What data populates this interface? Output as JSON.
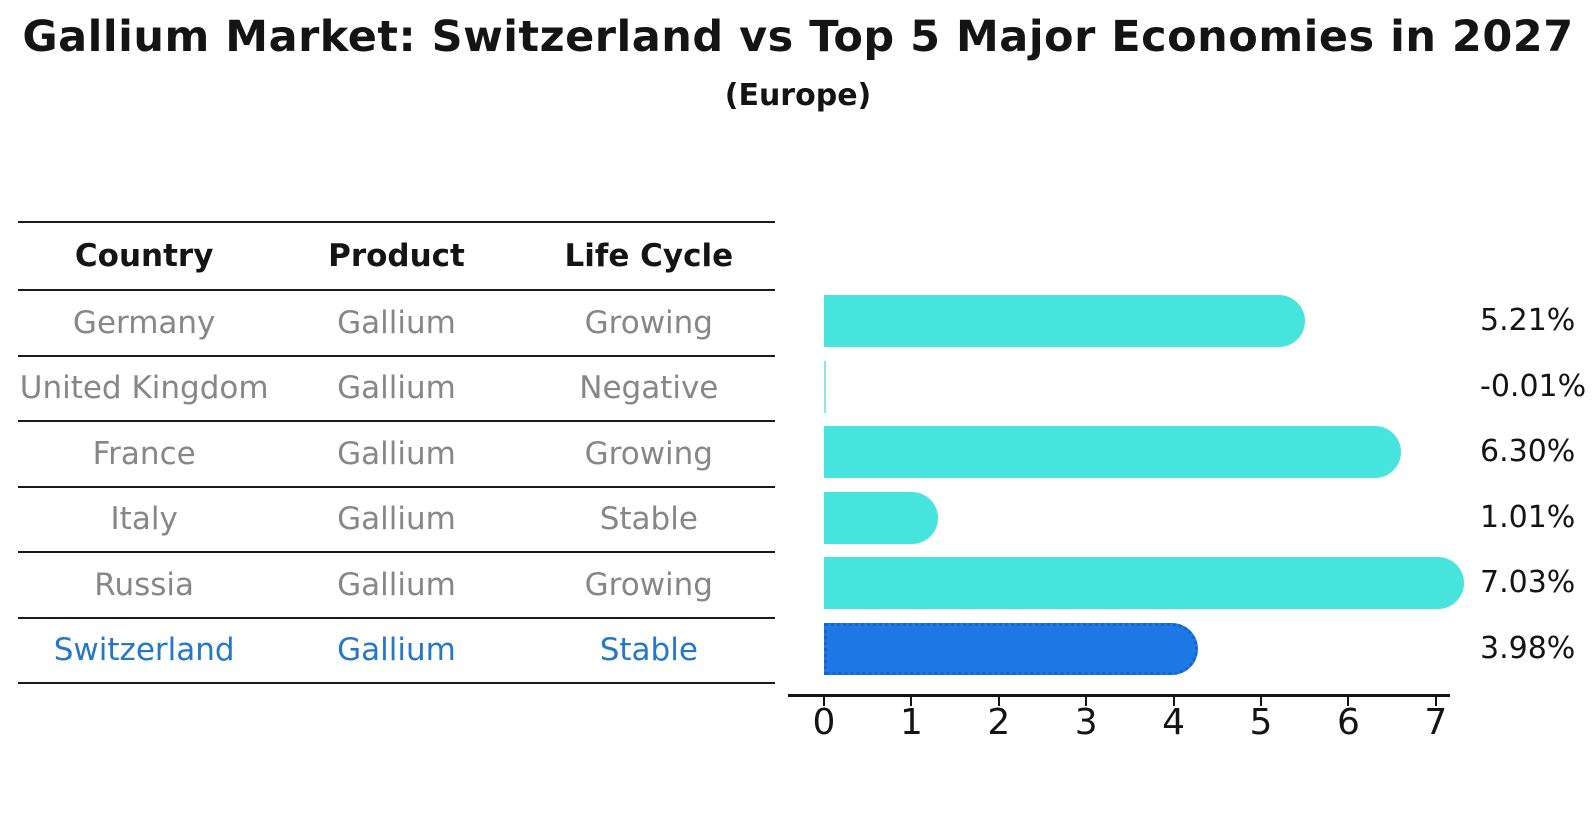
{
  "title": "Gallium Market: Switzerland vs Top 5 Major Economies in 2027",
  "subtitle": "(Europe)",
  "table": {
    "headers": [
      "Country",
      "Product",
      "Life Cycle"
    ],
    "rows": [
      {
        "country": "Germany",
        "product": "Gallium",
        "life_cycle": "Growing",
        "highlight": false
      },
      {
        "country": "United Kingdom",
        "product": "Gallium",
        "life_cycle": "Negative",
        "highlight": false
      },
      {
        "country": "France",
        "product": "Gallium",
        "life_cycle": "Growing",
        "highlight": false
      },
      {
        "country": "Italy",
        "product": "Gallium",
        "life_cycle": "Stable",
        "highlight": false
      },
      {
        "country": "Russia",
        "product": "Gallium",
        "life_cycle": "Growing",
        "highlight": false
      },
      {
        "country": "Switzerland",
        "product": "Gallium",
        "life_cycle": "Stable",
        "highlight": true
      }
    ]
  },
  "chart_data": {
    "type": "bar",
    "orientation": "horizontal",
    "title": "Gallium Market: Switzerland vs Top 5 Major Economies in 2027",
    "subtitle": "(Europe)",
    "categories": [
      "Germany",
      "United Kingdom",
      "France",
      "Italy",
      "Russia",
      "Switzerland"
    ],
    "values": [
      5.21,
      -0.01,
      6.3,
      1.01,
      7.03,
      3.98
    ],
    "value_labels": [
      "5.21%",
      "-0.01%",
      "6.30%",
      "1.01%",
      "7.03%",
      "3.98%"
    ],
    "xlabel": "",
    "ylabel": "",
    "xlim": [
      0,
      7.5
    ],
    "xticks": [
      0,
      1,
      2,
      3,
      4,
      5,
      6,
      7
    ],
    "grid": false,
    "legend": false,
    "bar_color": "#47E4DE",
    "highlight_bar_color": "#1E79E6",
    "highlighted_category": "Switzerland"
  },
  "colors": {
    "background": "#FFFFFF",
    "text_primary": "#141414",
    "text_muted": "#878787",
    "highlight_text": "#2577C8",
    "bar_cyan": "#47E4DE",
    "bar_blue": "#1E79E6",
    "bar_blue_border": "#1366CC"
  }
}
